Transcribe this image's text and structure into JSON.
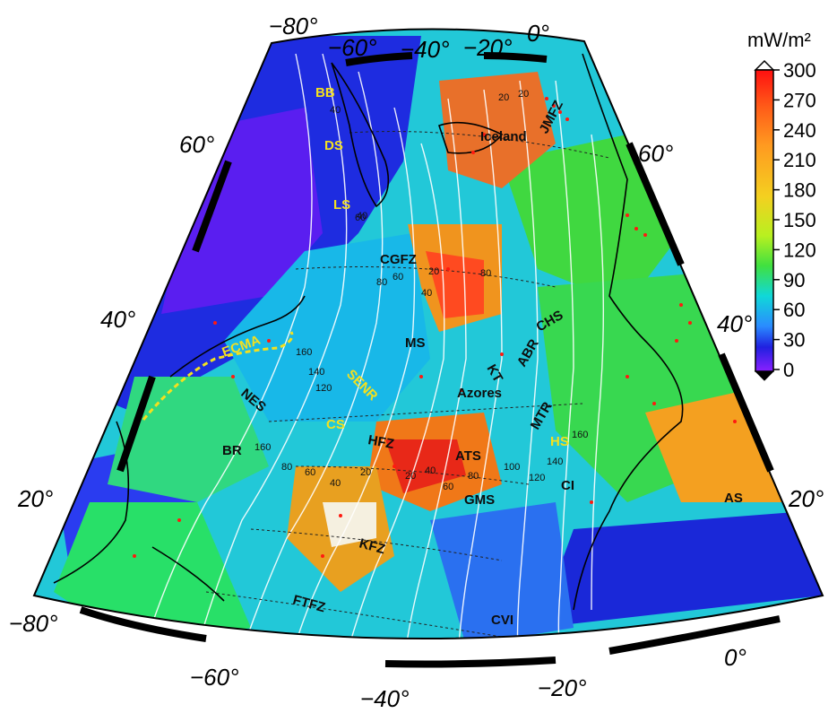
{
  "map": {
    "region": "North Atlantic",
    "variable": "heat flow",
    "colorbar": {
      "title": "mW/m²",
      "ticks": [
        "300",
        "270",
        "240",
        "210",
        "180",
        "150",
        "120",
        "90",
        "60",
        "30",
        "0"
      ],
      "colors": [
        "#ff1010",
        "#ff5a18",
        "#ff9a20",
        "#f4d020",
        "#d8f020",
        "#40e040",
        "#10d8d8",
        "#2a8cff",
        "#2020e0",
        "#8a20ff"
      ]
    },
    "graticule_labels": {
      "top": [
        "−80°",
        "−60°",
        "−40°",
        "−20°",
        "0°"
      ],
      "left": [
        "60°",
        "40°",
        "20°"
      ],
      "right": [
        "60°",
        "40°",
        "20°"
      ],
      "bottom": [
        "−80°",
        "−60°",
        "−40°",
        "−20°",
        "0°"
      ]
    },
    "features_dark": [
      "Iceland",
      "JMFZ",
      "CGFZ",
      "MS",
      "KT",
      "ABR",
      "CHS",
      "Azores",
      "NES",
      "BR",
      "HFZ",
      "ATS",
      "MTR",
      "GMS",
      "CI",
      "KFZ",
      "FTFZ",
      "CVI",
      "AS"
    ],
    "features_yellow": [
      "BB",
      "DS",
      "LS",
      "ECMA",
      "SENR",
      "CS",
      "HS"
    ],
    "isochron_labels": [
      "20",
      "40",
      "60",
      "80",
      "20",
      "40",
      "60",
      "80",
      "160",
      "140",
      "120",
      "160",
      "80",
      "60",
      "40",
      "20",
      "20",
      "40",
      "60",
      "80",
      "100",
      "120",
      "140",
      "160",
      "20",
      "40"
    ]
  }
}
